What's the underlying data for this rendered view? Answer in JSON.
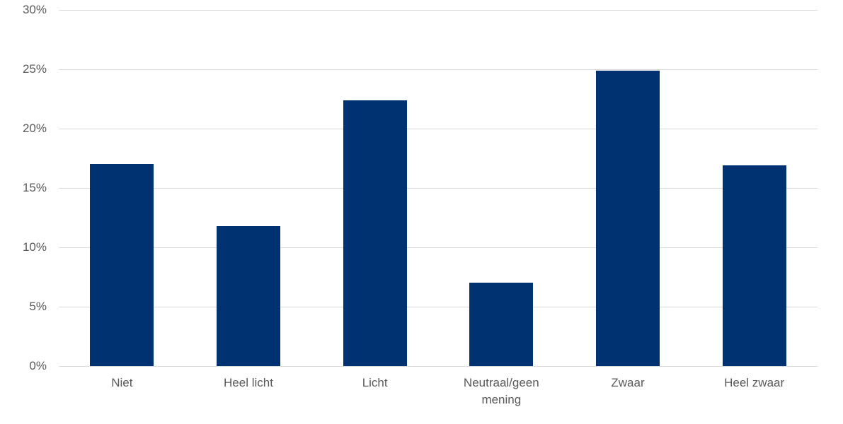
{
  "chart_data": {
    "type": "bar",
    "title": "",
    "xlabel": "",
    "ylabel": "",
    "categories": [
      "Niet",
      "Heel licht",
      "Licht",
      "Neutraal/geen mening",
      "Zwaar",
      "Heel zwaar"
    ],
    "values": [
      17.0,
      11.8,
      22.4,
      7.0,
      24.9,
      16.9
    ],
    "unit": "%",
    "ylim": [
      0,
      30
    ],
    "ytick_step": 5,
    "ytick_labels": [
      "0%",
      "5%",
      "10%",
      "15%",
      "20%",
      "25%",
      "30%"
    ],
    "grid": "horizontal",
    "legend": "none",
    "colors": {
      "bar": "#003271",
      "gridline": "#D9D9D9",
      "axis_line": "#D9D9D9",
      "tick_text": "#595959",
      "background": "#FFFFFF"
    }
  }
}
